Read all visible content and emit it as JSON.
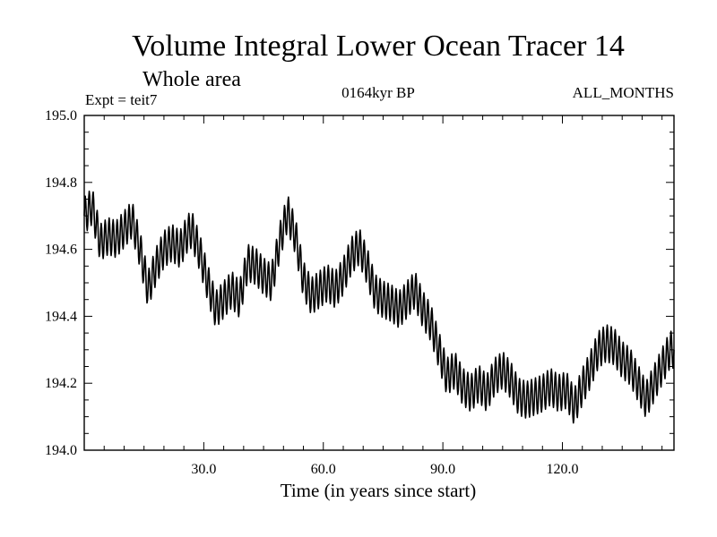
{
  "chart_data": {
    "type": "line",
    "title": "Volume Integral Lower Ocean Tracer 14",
    "subtitle": "Whole area",
    "experiment_label": "Expt = teit7",
    "period_label": "0164kyr BP",
    "months_label": "ALL_MONTHS",
    "xlabel": "Time (in years since start)",
    "ylabel": "",
    "xlim": [
      0,
      148
    ],
    "ylim": [
      194.0,
      195.0
    ],
    "x_ticks": [
      30,
      60,
      90,
      120
    ],
    "x_tick_labels": [
      "30.0",
      "60.0",
      "90.0",
      "120.0"
    ],
    "y_ticks": [
      194.0,
      194.2,
      194.4,
      194.6,
      194.8,
      195.0
    ],
    "y_tick_labels": [
      "194.0",
      "194.2",
      "194.4",
      "194.6",
      "194.8",
      "195.0"
    ],
    "line_color": "#000000",
    "oscillation_amplitude": 0.055,
    "oscillation_period_years": 1,
    "series": [
      {
        "name": "Volume Integral Lower Ocean Tracer 14",
        "x": [
          0,
          2,
          4,
          6,
          8,
          10,
          12,
          14,
          16,
          18,
          20,
          22,
          24,
          26,
          27,
          29,
          31,
          33,
          35,
          37,
          39,
          41,
          43,
          45,
          47,
          49,
          51,
          53,
          55,
          57,
          59,
          61,
          63,
          65,
          67,
          69,
          71,
          73,
          75,
          77,
          79,
          81,
          83,
          85,
          87,
          89,
          91,
          93,
          95,
          97,
          99,
          101,
          103,
          105,
          107,
          109,
          111,
          113,
          115,
          117,
          119,
          121,
          123,
          125,
          127,
          129,
          131,
          133,
          135,
          137,
          139,
          141,
          143,
          145,
          147,
          148
        ],
        "y": [
          194.7,
          194.73,
          194.62,
          194.64,
          194.63,
          194.66,
          194.69,
          194.6,
          194.48,
          194.55,
          194.6,
          194.62,
          194.6,
          194.65,
          194.66,
          194.59,
          194.5,
          194.42,
          194.45,
          194.48,
          194.45,
          194.56,
          194.55,
          194.52,
          194.5,
          194.62,
          194.71,
          194.64,
          194.51,
          194.46,
          194.48,
          194.5,
          194.48,
          194.52,
          194.58,
          194.61,
          194.55,
          194.47,
          194.45,
          194.44,
          194.42,
          194.45,
          194.48,
          194.42,
          194.38,
          194.3,
          194.22,
          194.24,
          194.19,
          194.17,
          194.2,
          194.17,
          194.22,
          194.24,
          194.21,
          194.16,
          194.15,
          194.16,
          194.17,
          194.19,
          194.17,
          194.18,
          194.13,
          194.19,
          194.24,
          194.3,
          194.32,
          194.31,
          194.27,
          194.25,
          194.2,
          194.15,
          194.2,
          194.25,
          194.3,
          194.3
        ]
      }
    ]
  }
}
